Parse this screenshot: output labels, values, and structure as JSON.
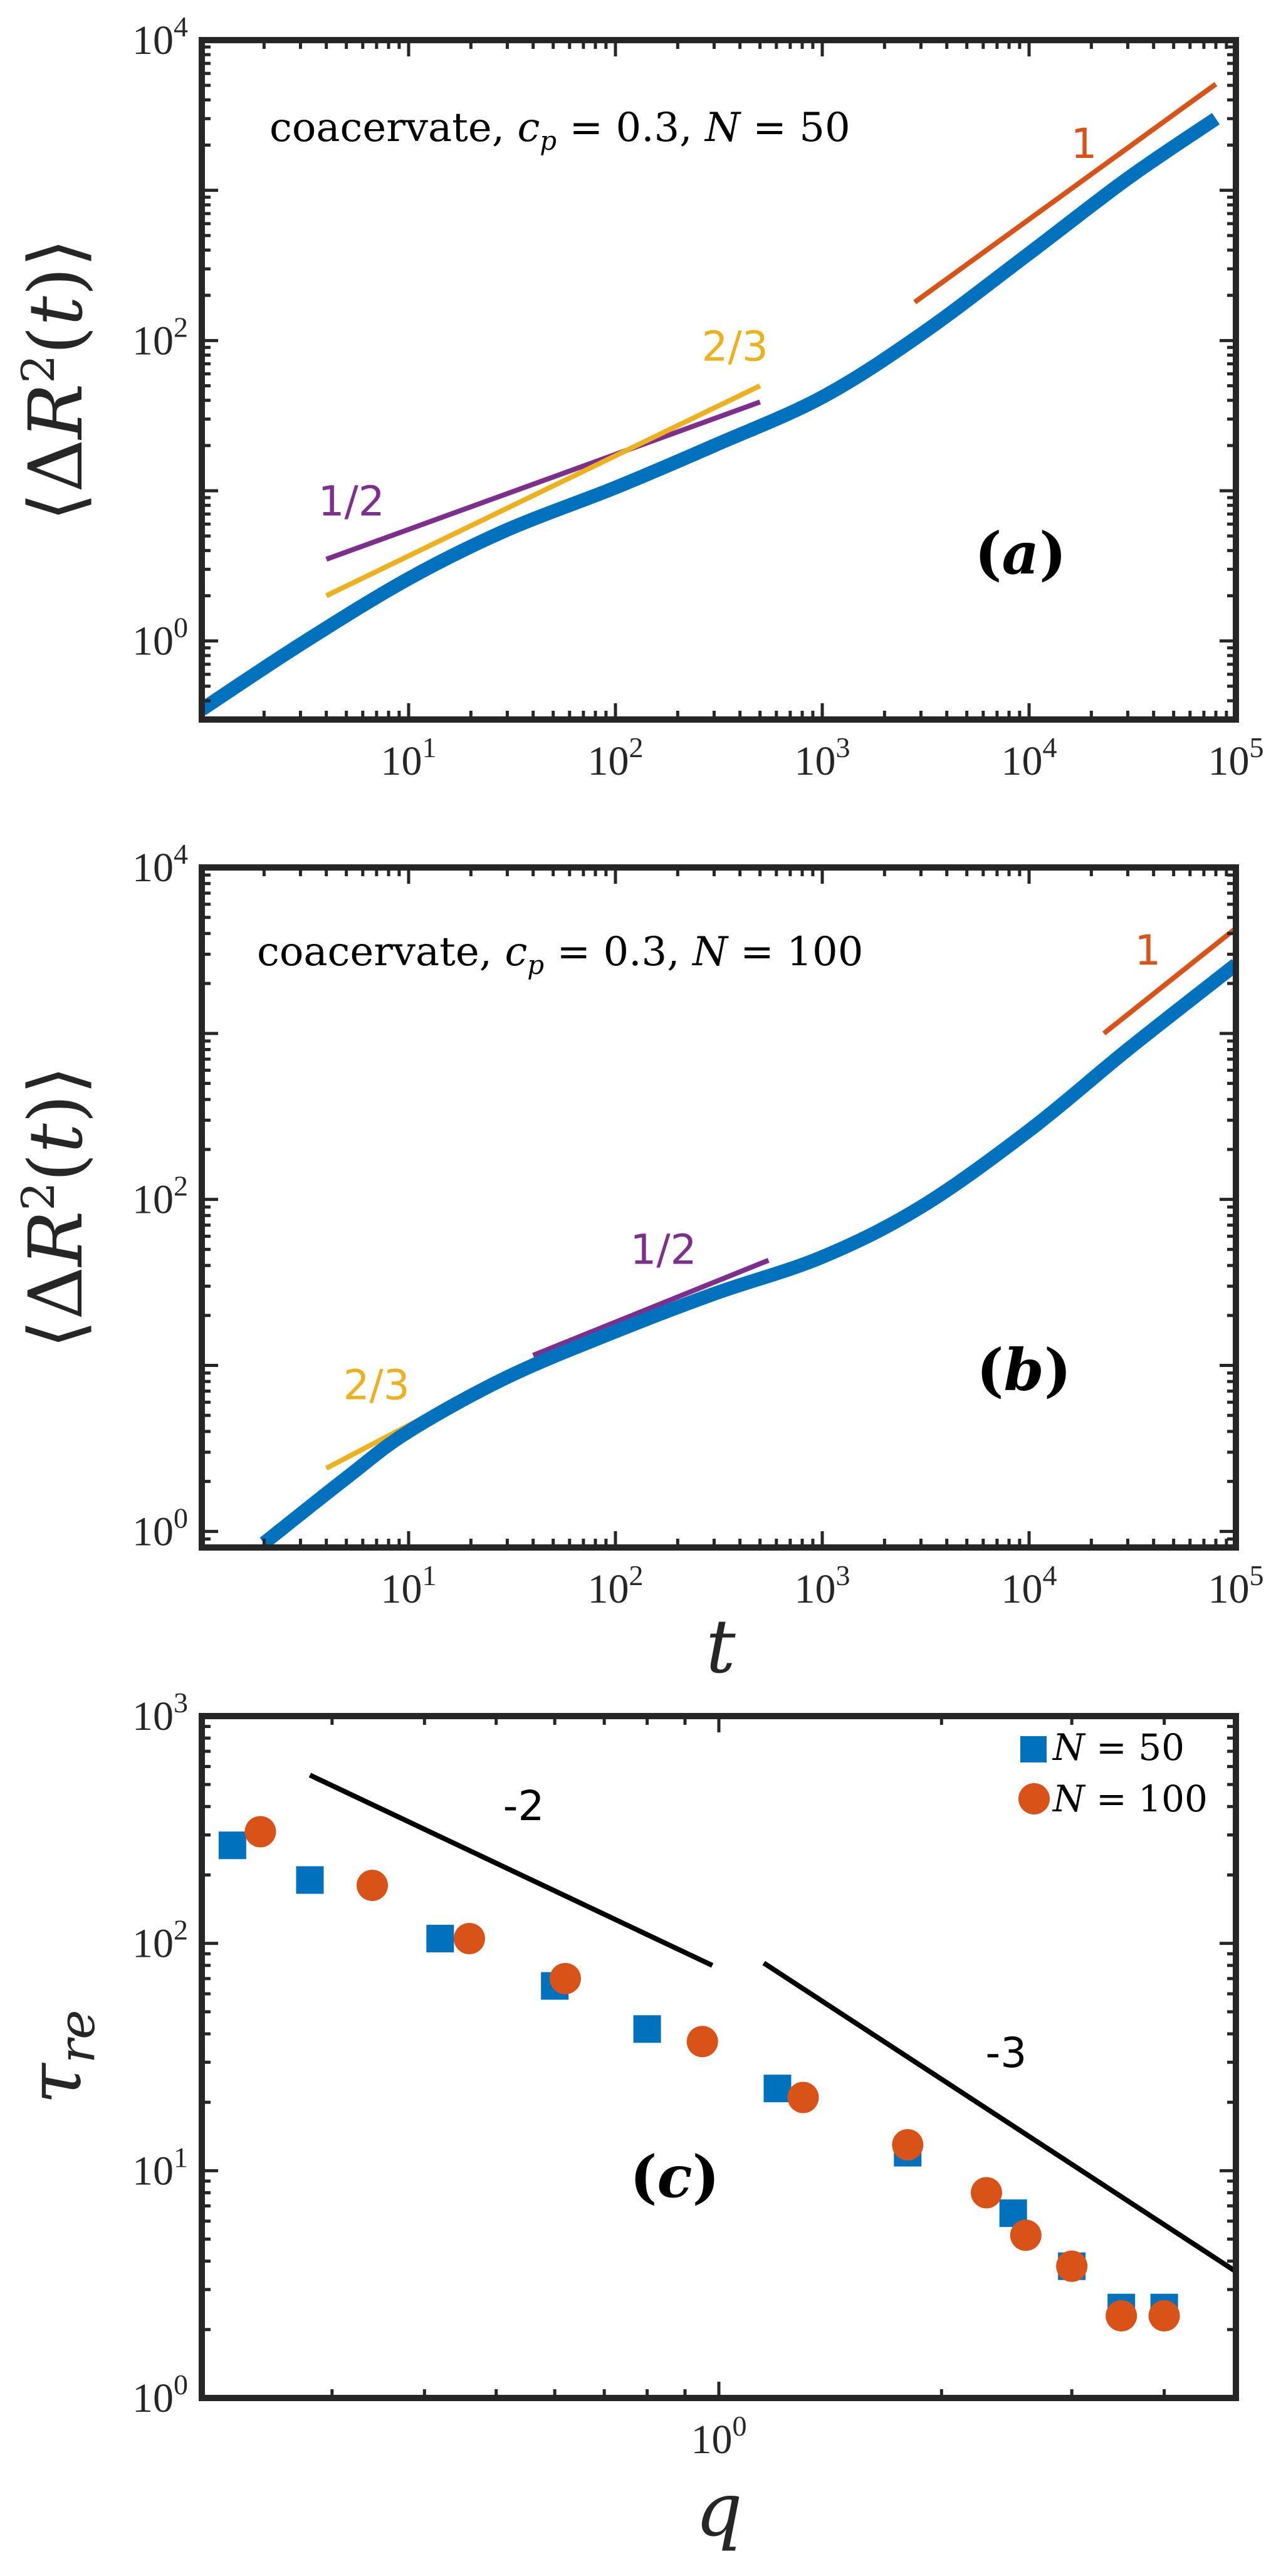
{
  "chart_data": [
    {
      "panel": "a",
      "type": "line",
      "xscale": "log",
      "yscale": "log",
      "xlim": [
        1,
        100000
      ],
      "ylim": [
        0.3,
        10000
      ],
      "xticks": [
        10,
        100,
        1000,
        10000,
        100000
      ],
      "yticks": [
        1,
        100,
        10000
      ],
      "ylabel": "⟨ΔR²(t)⟩",
      "xlabel": "",
      "annotation": "coacervate, c_p = 0.3, N = 50",
      "annotation_parts": {
        "prefix": "coacervate, ",
        "var": "c",
        "sub": "p",
        "middle": " = 0.3, ",
        "var2": "N",
        "suffix": " = 50"
      },
      "panel_tag": "(a)",
      "panel_tag_parts": {
        "open": "(",
        "letter": "a",
        "close": ")"
      },
      "series": [
        {
          "name": "MSD",
          "color": "#0072BD",
          "x": [
            1,
            3,
            10,
            30,
            100,
            300,
            1000,
            3000,
            10000,
            30000,
            80000
          ],
          "y": [
            0.35,
            0.95,
            2.6,
            5.5,
            10.5,
            20,
            42,
            110,
            380,
            1200,
            3000
          ]
        }
      ],
      "slope_guides": [
        {
          "label": "1/2",
          "slope": 0.5,
          "color": "#7E2F8E",
          "x": [
            4,
            500
          ],
          "y": [
            3.5,
            39
          ]
        },
        {
          "label": "2/3",
          "slope": 0.6667,
          "color": "#EDB120",
          "x": [
            4,
            500
          ],
          "y": [
            2,
            50
          ]
        },
        {
          "label": "1",
          "slope": 1,
          "color": "#D95319",
          "x": [
            2800,
            80000
          ],
          "y": [
            180,
            5100
          ]
        }
      ]
    },
    {
      "panel": "b",
      "type": "line",
      "xscale": "log",
      "yscale": "log",
      "xlim": [
        1,
        100000
      ],
      "ylim": [
        0.8,
        10000
      ],
      "xticks": [
        10,
        100,
        1000,
        10000,
        100000
      ],
      "yticks": [
        1,
        100,
        10000
      ],
      "ylabel": "⟨ΔR²(t)⟩",
      "xlabel": "t",
      "annotation": "coacervate, c_p = 0.3, N = 100",
      "annotation_parts": {
        "prefix": "coacervate, ",
        "var": "c",
        "sub": "p",
        "middle": " = 0.3, ",
        "var2": "N",
        "suffix": " = 100"
      },
      "panel_tag": "(b)",
      "panel_tag_parts": {
        "open": "(",
        "letter": "b",
        "close": ")"
      },
      "series": [
        {
          "name": "MSD",
          "color": "#0072BD",
          "x": [
            2,
            5,
            10,
            30,
            100,
            300,
            1000,
            3000,
            10000,
            30000,
            100000
          ],
          "y": [
            0.85,
            2.1,
            4.0,
            8.5,
            16,
            27,
            45,
            90,
            260,
            800,
            2600
          ]
        }
      ],
      "slope_guides": [
        {
          "label": "2/3",
          "slope": 0.6667,
          "color": "#EDB120",
          "x": [
            4,
            60
          ],
          "y": [
            2.4,
            14
          ]
        },
        {
          "label": "1/2",
          "slope": 0.5,
          "color": "#7E2F8E",
          "x": [
            40,
            550
          ],
          "y": [
            11.5,
            43
          ]
        },
        {
          "label": "1",
          "slope": 1,
          "color": "#D95319",
          "x": [
            23000,
            100000
          ],
          "y": [
            1000,
            4300
          ]
        }
      ]
    },
    {
      "panel": "c",
      "type": "scatter",
      "xscale": "log",
      "yscale": "log",
      "xlim": [
        0.2,
        5
      ],
      "ylim": [
        1,
        1000
      ],
      "xticks": [
        1
      ],
      "yticks": [
        1,
        10,
        100,
        1000
      ],
      "ylabel": "τre",
      "xlabel": "q",
      "panel_tag": "(c)",
      "panel_tag_parts": {
        "open": "(",
        "letter": "c",
        "close": ")"
      },
      "series": [
        {
          "name": "N = 50",
          "marker": "square",
          "color": "#0072BD",
          "x": [
            0.22,
            0.28,
            0.42,
            0.6,
            0.8,
            1.2,
            1.8,
            2.5,
            3.0,
            3.5,
            4.0
          ],
          "y": [
            270,
            190,
            105,
            65,
            42,
            23,
            12,
            6.5,
            3.8,
            2.5,
            2.5
          ]
        },
        {
          "name": "N = 100",
          "marker": "circle",
          "color": "#D95319",
          "x": [
            0.24,
            0.34,
            0.46,
            0.62,
            0.95,
            1.3,
            1.8,
            2.3,
            2.6,
            3.0,
            3.5,
            4.0
          ],
          "y": [
            310,
            180,
            105,
            70,
            37,
            21,
            13,
            8,
            5.2,
            3.8,
            2.3,
            2.3
          ]
        }
      ],
      "legend": {
        "entries": [
          {
            "prefix": "",
            "var": "N",
            "suffix": " = 50"
          },
          {
            "prefix": "",
            "var": "N",
            "suffix": " = 100"
          }
        ],
        "location": "top-right"
      },
      "slope_guides": [
        {
          "label": "-2",
          "slope": -2,
          "color": "#000000",
          "x": [
            0.28,
            0.98
          ],
          "y": [
            550,
            80
          ]
        },
        {
          "label": "-3",
          "slope": -3,
          "color": "#000000",
          "x": [
            1.15,
            5
          ],
          "y": [
            82,
            3.6
          ]
        }
      ]
    }
  ],
  "labels": {
    "ylabel_ab": {
      "open": "⟨Δ",
      "var": "R",
      "sup": "2",
      "paren_open": "(",
      "var_t": "t",
      "paren_close": ")",
      "close": "⟩"
    },
    "xlabel_t": "t",
    "ylabel_c": {
      "var": "τ",
      "sub": "re"
    },
    "xlabel_q": "q",
    "tick_base": "10"
  }
}
